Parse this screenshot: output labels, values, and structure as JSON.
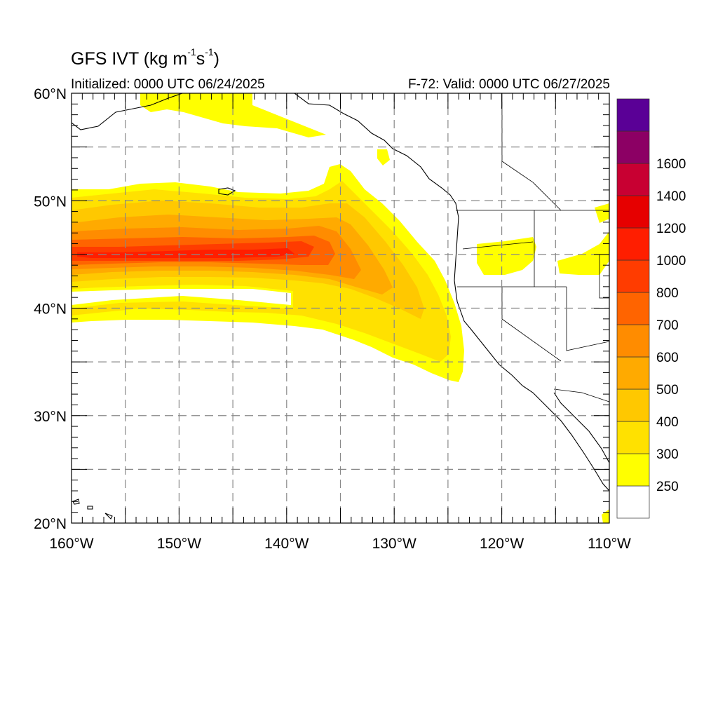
{
  "title": {
    "main": "GFS IVT (kg m",
    "sup1": "-1",
    "mid": "s",
    "sup2": "-1",
    "end": ")"
  },
  "subtitle_left": "Initialized: 0000 UTC 06/24/2025",
  "subtitle_right": "F-72: Valid: 0000 UTC 06/27/2025",
  "map": {
    "lon_range": [
      -160,
      -110
    ],
    "lat_range": [
      20,
      60
    ],
    "lon_ticks": [
      {
        "value": -160,
        "label": "160°W"
      },
      {
        "value": -150,
        "label": "150°W"
      },
      {
        "value": -140,
        "label": "140°W"
      },
      {
        "value": -130,
        "label": "130°W"
      },
      {
        "value": -120,
        "label": "120°W"
      },
      {
        "value": -110,
        "label": "110°W"
      }
    ],
    "lat_ticks": [
      {
        "value": 60,
        "label": "60°N"
      },
      {
        "value": 50,
        "label": "50°N"
      },
      {
        "value": 40,
        "label": "40°N"
      },
      {
        "value": 30,
        "label": "30°N"
      },
      {
        "value": 20,
        "label": "20°N"
      }
    ],
    "grid_lon": [
      -155,
      -150,
      -145,
      -140,
      -135,
      -130,
      -125,
      -120,
      -115
    ],
    "grid_lat": [
      25,
      30,
      35,
      40,
      45,
      50,
      55
    ],
    "grid": true
  },
  "colorbar": {
    "levels": [
      "",
      "250",
      "300",
      "400",
      "500",
      "600",
      "700",
      "800",
      "1000",
      "1200",
      "1400",
      "1600",
      ""
    ],
    "colors": [
      "#ffffff",
      "#ffff00",
      "#ffe100",
      "#ffc800",
      "#ffaa00",
      "#ff8c00",
      "#ff6400",
      "#ff3c00",
      "#ff1e00",
      "#e60000",
      "#c80032",
      "#8c0064",
      "#5a0096"
    ]
  }
}
